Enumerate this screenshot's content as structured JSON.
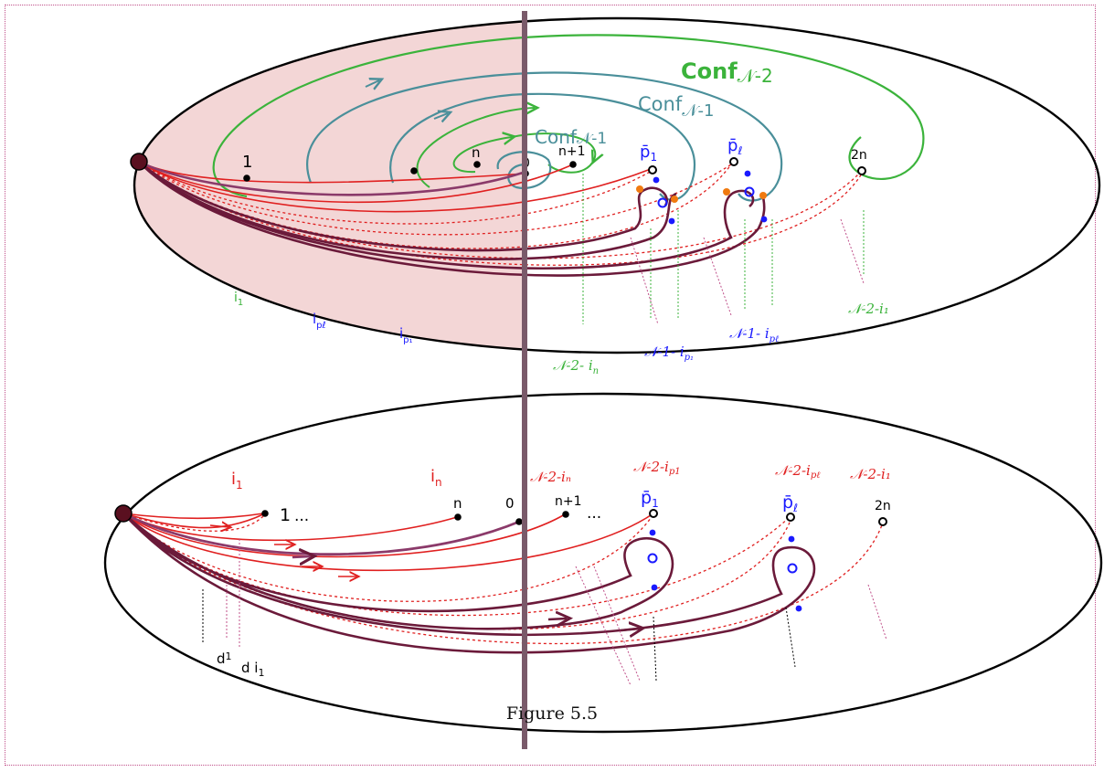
{
  "caption": "Figure 5.5",
  "top_disk": {
    "conf_labels": {
      "outer": {
        "main": "Conf",
        "sub": "𝒩-2"
      },
      "middle": {
        "main": "Conf",
        "sub": "𝒩-1"
      },
      "inner": {
        "main": "Conf",
        "sub": "𝒩-1"
      }
    },
    "points": {
      "p1": "1",
      "pn": "n",
      "p0": "0",
      "pn1": "n+1",
      "pbar1": "p̄",
      "pbar1_sub": "1",
      "pbarl": "p̄",
      "pbarl_sub": "ℓ",
      "p2n": "2n"
    },
    "bottom_labels": {
      "i1": {
        "base": "i",
        "sub": "1"
      },
      "ipl": {
        "base": "i",
        "sub": "pℓ"
      },
      "ip1": {
        "base": "i",
        "sub": "p₁"
      },
      "n2_in": {
        "prefix": "𝒩-2- ",
        "base": "i",
        "sub": "n"
      },
      "n1_ip1": {
        "prefix": "𝒩-1- ",
        "base": "i",
        "sub": "p₁"
      },
      "n1_ipl": {
        "prefix": "𝒩-1- ",
        "base": "i",
        "sub": "pℓ"
      },
      "n2_i1": {
        "text": "𝒩-2-i₁"
      }
    }
  },
  "bottom_disk": {
    "top_labels": {
      "i1": {
        "base": "i",
        "sub": "1"
      },
      "in": {
        "base": "i",
        "sub": "n"
      },
      "n2_in": "𝒩-2-iₙ",
      "n2_ip1": "𝒩-2-i",
      "n2_ip1_sub": "p1",
      "n2_ipl": "𝒩-2-i",
      "n2_ipl_sub": "pℓ",
      "n2_i1": "𝒩-2-i₁"
    },
    "points": {
      "p1": "1",
      "dots1": "...",
      "pn": "n",
      "p0": "0",
      "pn1": "n+1",
      "dots2": "...",
      "pbar1": "p̄",
      "pbar1_sub": "1",
      "pbarl": "p̄",
      "pbarl_sub": "ℓ",
      "p2n": "2n"
    },
    "d_labels": {
      "d1": {
        "base": "d",
        "sub": "1"
      },
      "di1": {
        "base": "d i",
        "sub": "1"
      }
    }
  },
  "colors": {
    "green": "#3bb33b",
    "teal": "#4a8f9a",
    "red": "#e02020",
    "maroon": "#6b1a3a",
    "purple": "#8b3a6a",
    "blue": "#1a1aff",
    "orange": "#f07a10",
    "shade": "#f3d6d6"
  }
}
